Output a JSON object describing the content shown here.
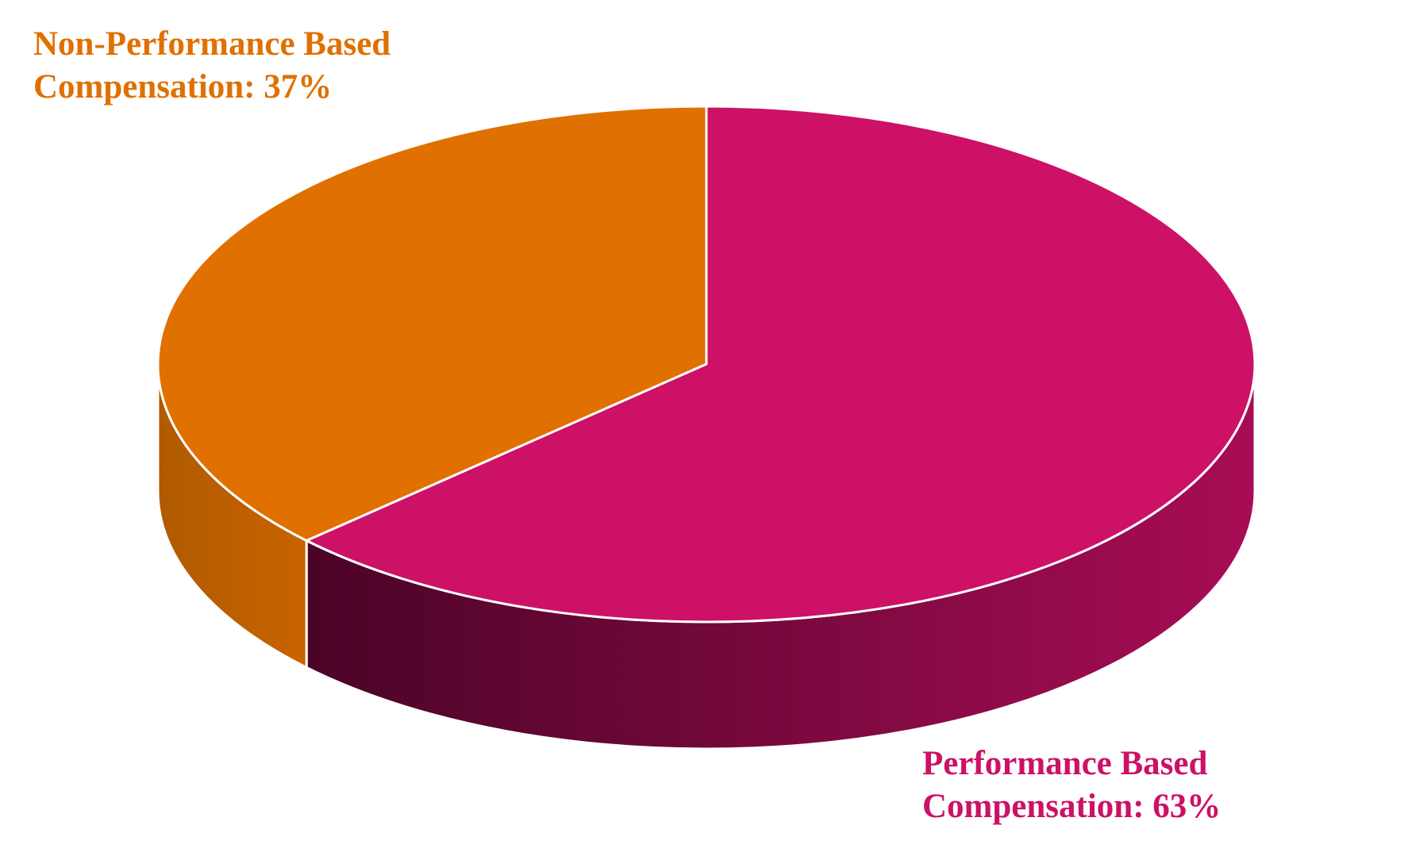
{
  "chart_data": {
    "type": "pie3d",
    "labels": [
      [
        "Non-Performance Based",
        "Compensation: 37%"
      ],
      [
        "Performance Based",
        "Compensation: 63%"
      ]
    ],
    "values": [
      37,
      63
    ],
    "colors": [
      "#e07000",
      "#cc1166"
    ],
    "side_colors": [
      [
        "#c86400",
        "#b05a00"
      ],
      [
        "#a80d55",
        "#4a0426"
      ]
    ]
  }
}
